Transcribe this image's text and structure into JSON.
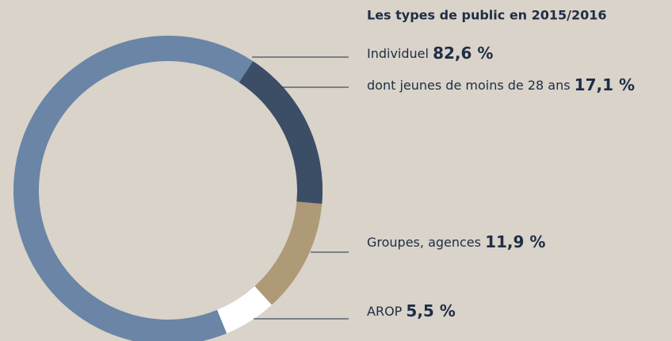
{
  "chart_data": {
    "type": "donut",
    "title": "Les types de public en 2015/2016",
    "categories": [
      "Individuel",
      "dont jeunes de moins de 28 ans",
      "Groupes, agences",
      "AROP"
    ],
    "values": [
      82.6,
      17.1,
      11.9,
      5.5
    ],
    "value_labels": [
      "82,6 %",
      "17,1 %",
      "11,9 %",
      "5,5 %"
    ],
    "colors": [
      "#6a85a6",
      "#3c4d66",
      "#ae9a76",
      "#ffffff"
    ]
  }
}
